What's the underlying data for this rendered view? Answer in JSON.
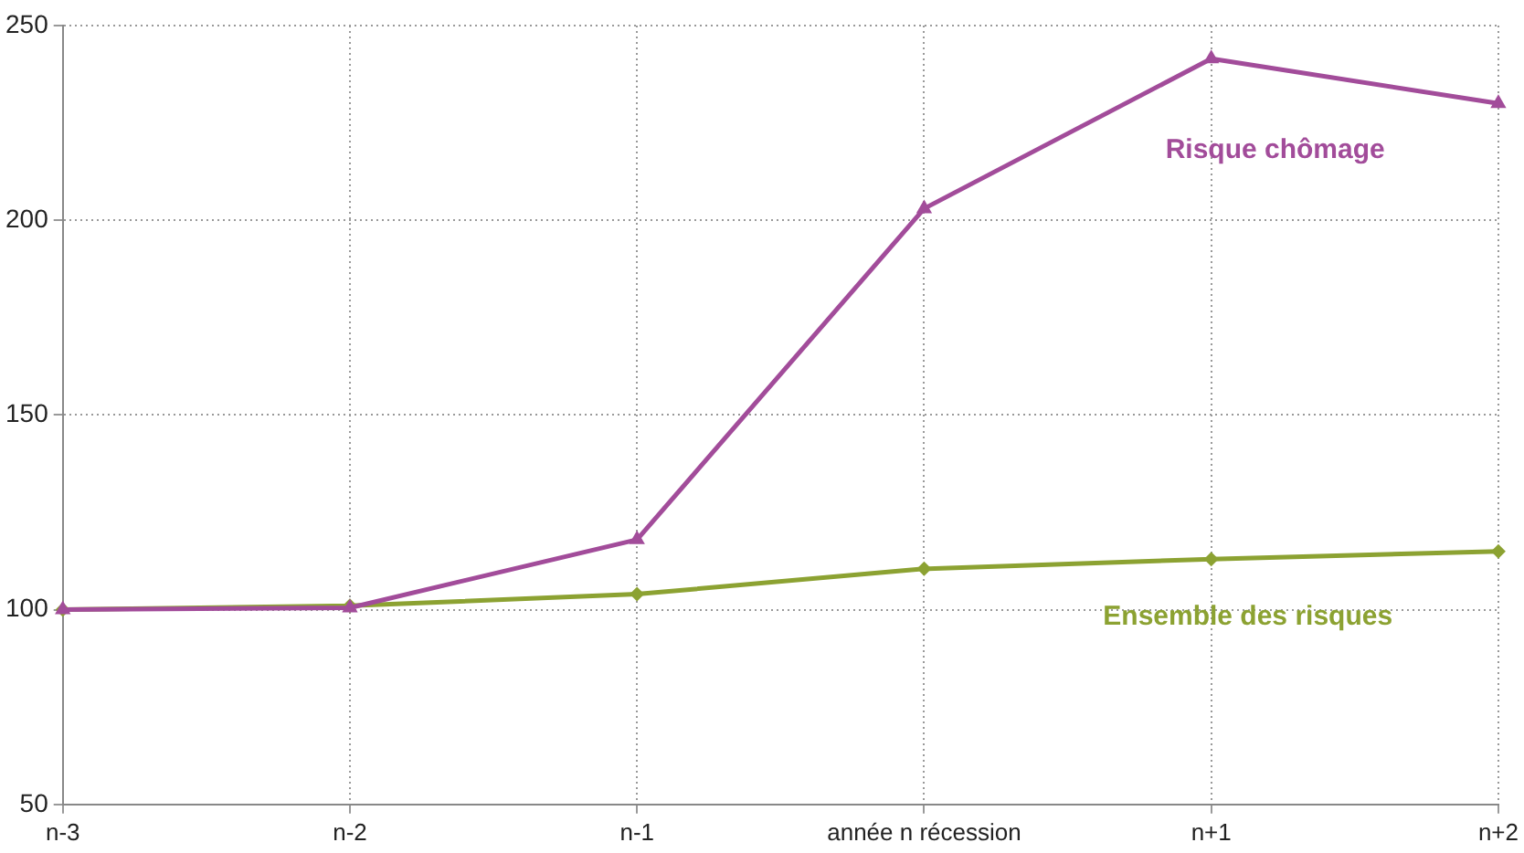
{
  "chart_data": {
    "type": "line",
    "categories": [
      "n-3",
      "n-2",
      "n-1",
      "année n récession",
      "n+1",
      "n+2"
    ],
    "series": [
      {
        "name": "Risque chômage",
        "color": "#a24c9a",
        "marker": "triangle",
        "values": [
          100,
          100.5,
          118,
          203,
          241.5,
          230
        ]
      },
      {
        "name": "Ensemble des risques",
        "color": "#8ca232",
        "marker": "diamond",
        "values": [
          100,
          101,
          104,
          110.5,
          113,
          115
        ]
      }
    ],
    "ylim": [
      50,
      250
    ],
    "yticks": [
      50,
      100,
      150,
      200,
      250
    ],
    "grid": true,
    "legend": false,
    "line_style": "solid"
  }
}
